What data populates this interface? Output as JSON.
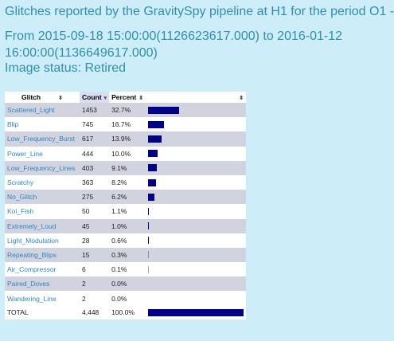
{
  "page": {
    "title_line1": "Glitches reported by the GravitySpy pipeline at H1 for the period O1 -",
    "title_line2": "From 2015-09-18 15:00:00(1126623617.000) to 2016-01-12",
    "title_line3": "16:00:00(1136649617.000)",
    "status": "Image status: Retired"
  },
  "table": {
    "headers": {
      "glitch": "Glitch",
      "count": "Count",
      "percent": "Percent",
      "sort_icon": "⬍",
      "sorted_icon": "▾"
    },
    "rows": [
      {
        "name": "Scattered_Light",
        "count": "1453",
        "percent": "32.7%",
        "fraction": 0.327,
        "link": true
      },
      {
        "name": "Blip",
        "count": "745",
        "percent": "16.7%",
        "fraction": 0.167,
        "link": true
      },
      {
        "name": "Low_Frequency_Burst",
        "count": "617",
        "percent": "13.9%",
        "fraction": 0.139,
        "link": true
      },
      {
        "name": "Power_Line",
        "count": "444",
        "percent": "10.0%",
        "fraction": 0.1,
        "link": true
      },
      {
        "name": "Low_Frequency_Lines",
        "count": "403",
        "percent": "9.1%",
        "fraction": 0.091,
        "link": true
      },
      {
        "name": "Scratchy",
        "count": "363",
        "percent": "8.2%",
        "fraction": 0.082,
        "link": true
      },
      {
        "name": "No_Glitch",
        "count": "275",
        "percent": "6.2%",
        "fraction": 0.062,
        "link": true
      },
      {
        "name": "Koi_Fish",
        "count": "50",
        "percent": "1.1%",
        "fraction": 0.011,
        "link": true
      },
      {
        "name": "Extremely_Loud",
        "count": "45",
        "percent": "1.0%",
        "fraction": 0.01,
        "link": true
      },
      {
        "name": "Light_Modulation",
        "count": "28",
        "percent": "0.6%",
        "fraction": 0.006,
        "link": true
      },
      {
        "name": "Repeating_Blips",
        "count": "15",
        "percent": "0.3%",
        "fraction": 0.003,
        "link": true
      },
      {
        "name": "Air_Compressor",
        "count": "6",
        "percent": "0.1%",
        "fraction": 0.001,
        "link": true
      },
      {
        "name": "Paired_Doves",
        "count": "2",
        "percent": "0.0%",
        "fraction": 0.0,
        "link": true
      },
      {
        "name": "Wandering_Line",
        "count": "2",
        "percent": "0.0%",
        "fraction": 0.0,
        "link": true
      }
    ],
    "total": {
      "name": "TOTAL",
      "count": "4,448",
      "percent": "100.0%",
      "fraction": 1.0
    }
  },
  "colors": {
    "background": "#cdeef9",
    "title": "#2f8eb2",
    "link": "#2a89c6",
    "bar": "#00008b",
    "odd_row": "#d1d3de"
  }
}
